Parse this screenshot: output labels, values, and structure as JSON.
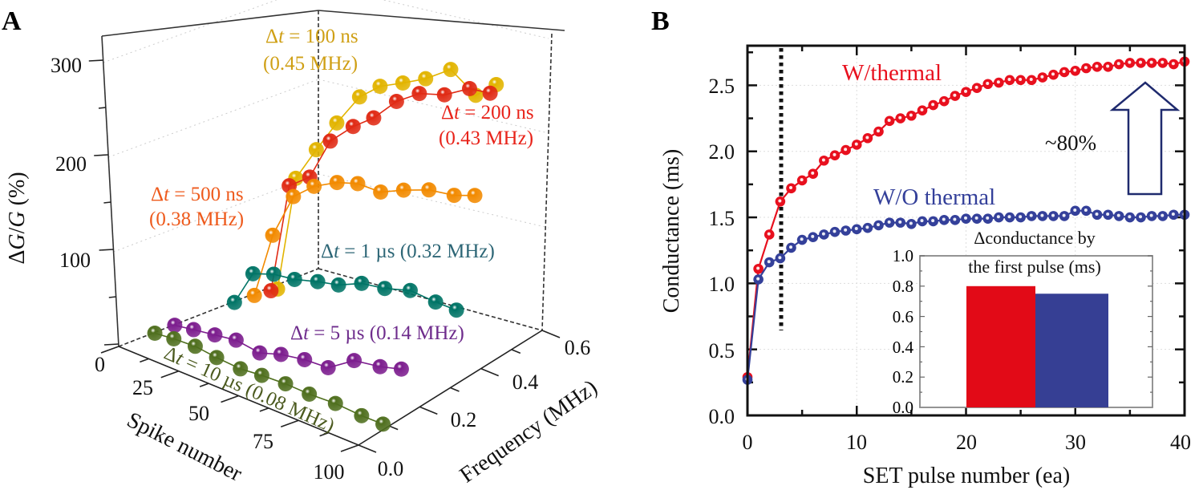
{
  "panels": {
    "a_label": "A",
    "b_label": "B"
  },
  "chart_data": [
    {
      "type": "line",
      "projection": "3d",
      "xlabel": "Spike number",
      "ylabel": "Frequency (MHz)",
      "zlabel": "ΔG/G (%)",
      "xlim": [
        0,
        100
      ],
      "ylim": [
        0,
        0.6
      ],
      "zlim": [
        0,
        300
      ],
      "z_ticks": [
        "0",
        "100",
        "200",
        "300"
      ],
      "x_ticks": [
        "25",
        "50",
        "75",
        "100"
      ],
      "y_ticks": [
        "0.0",
        "0.2",
        "0.4",
        "0.6"
      ],
      "series": [
        {
          "label": "Δt = 100 ns",
          "label2": "(0.45 MHz)",
          "frequency": 0.45,
          "color": "#e2b400",
          "text_color": "#cf9f14",
          "spike": [
            4,
            12,
            21,
            30,
            40,
            49,
            59,
            69,
            80,
            91,
            100
          ],
          "values": [
            2,
            125,
            162,
            197,
            232,
            250,
            261,
            273,
            291,
            272,
            290
          ]
        },
        {
          "label": "Δt = 200 ns",
          "label2": "(0.43 MHz)",
          "frequency": 0.43,
          "color": "#e02a14",
          "text_color": "#e8231a",
          "spike": [
            4,
            12,
            21,
            30,
            40,
            49,
            59,
            69,
            80,
            91,
            100
          ],
          "values": [
            3,
            120,
            136,
            181,
            204,
            220,
            245,
            261,
            268,
            283,
            285
          ]
        },
        {
          "label": "Δt = 500 ns",
          "label2": "(0.38 MHz)",
          "frequency": 0.38,
          "color": "#f28a00",
          "text_color": "#ee5a1c",
          "spike": [
            4,
            12,
            21,
            30,
            40,
            49,
            59,
            69,
            80,
            91,
            100
          ],
          "values": [
            5,
            75,
            123,
            141,
            153,
            159,
            158,
            168,
            177,
            180,
            187
          ]
        },
        {
          "label": "Δt = 1 µs (0.32 MHz)",
          "label2": "",
          "frequency": 0.32,
          "color": "#007466",
          "text_color": "#2d6676",
          "spike": [
            4,
            12,
            21,
            30,
            40,
            49,
            59,
            69,
            80,
            91,
            100
          ],
          "values": [
            6,
            43,
            50,
            52,
            58,
            62,
            72,
            75,
            82,
            79,
            78
          ]
        },
        {
          "label": "Δt = 5 µs (0.14 MHz)",
          "label2": "",
          "frequency": 0.14,
          "color": "#7c1d8e",
          "text_color": "#6e2c8c",
          "spike": [
            4,
            12,
            21,
            30,
            40,
            49,
            59,
            69,
            80,
            91,
            100
          ],
          "values": [
            7,
            10,
            13,
            16,
            12,
            19,
            23,
            24,
            42,
            46,
            52
          ]
        },
        {
          "label": "Δt = 10 µs (0.08 MHz)",
          "label2": "",
          "frequency": 0.08,
          "color": "#4f6f1e",
          "text_color": "#4b5a1f",
          "spike": [
            4,
            12,
            21,
            30,
            40,
            49,
            59,
            69,
            80,
            91,
            100
          ],
          "values": [
            7,
            9,
            10,
            7,
            5,
            7,
            8,
            7,
            8,
            6,
            6
          ]
        }
      ]
    },
    {
      "type": "line",
      "xlabel": "SET pulse number (ea)",
      "ylabel": "Conductance (ms)",
      "xlim": [
        0,
        40
      ],
      "ylim": [
        0,
        2.8
      ],
      "x_ticks": [
        "0",
        "10",
        "20",
        "30",
        "40"
      ],
      "y_ticks": [
        "0.0",
        "0.5",
        "1.0",
        "1.5",
        "2.0",
        "2.5"
      ],
      "grid": true,
      "marker_line_x": 3,
      "annotation": "~80%",
      "series": [
        {
          "name": "W/thermal",
          "color": "#e8101e",
          "x": [
            0,
            1,
            2,
            3,
            4,
            5,
            6,
            7,
            8,
            9,
            10,
            11,
            12,
            13,
            14,
            15,
            16,
            17,
            18,
            19,
            20,
            21,
            22,
            23,
            24,
            25,
            26,
            27,
            28,
            29,
            30,
            31,
            32,
            33,
            34,
            35,
            36,
            37,
            38,
            39,
            40
          ],
          "y": [
            0.29,
            1.11,
            1.37,
            1.62,
            1.72,
            1.78,
            1.83,
            1.93,
            1.97,
            2.01,
            2.05,
            2.1,
            2.15,
            2.23,
            2.25,
            2.27,
            2.31,
            2.35,
            2.38,
            2.42,
            2.45,
            2.48,
            2.51,
            2.52,
            2.54,
            2.54,
            2.54,
            2.56,
            2.58,
            2.6,
            2.61,
            2.63,
            2.64,
            2.64,
            2.66,
            2.67,
            2.67,
            2.67,
            2.67,
            2.66,
            2.68
          ]
        },
        {
          "name": "W/O thermal",
          "color": "#34409a",
          "x": [
            0,
            1,
            2,
            3,
            4,
            5,
            6,
            7,
            8,
            9,
            10,
            11,
            12,
            13,
            14,
            15,
            16,
            17,
            18,
            19,
            20,
            21,
            22,
            23,
            24,
            25,
            26,
            27,
            28,
            29,
            30,
            31,
            32,
            33,
            34,
            35,
            36,
            37,
            38,
            39,
            40
          ],
          "y": [
            0.27,
            1.03,
            1.16,
            1.19,
            1.27,
            1.33,
            1.35,
            1.37,
            1.39,
            1.4,
            1.41,
            1.42,
            1.44,
            1.46,
            1.46,
            1.45,
            1.47,
            1.47,
            1.48,
            1.48,
            1.49,
            1.49,
            1.49,
            1.5,
            1.5,
            1.5,
            1.51,
            1.51,
            1.51,
            1.51,
            1.55,
            1.55,
            1.52,
            1.52,
            1.51,
            1.5,
            1.5,
            1.51,
            1.51,
            1.52,
            1.52
          ]
        }
      ],
      "inset": {
        "type": "bar",
        "title_line1": "Δconductance by",
        "title_line2": "the first pulse (ms)",
        "ylim": [
          0,
          1.0
        ],
        "y_ticks": [
          "0.0",
          "0.2",
          "0.4",
          "0.6",
          "0.8",
          "1.0"
        ],
        "values": [
          0.8,
          0.75
        ],
        "colors": [
          "#e20a17",
          "#363f94"
        ]
      }
    }
  ]
}
